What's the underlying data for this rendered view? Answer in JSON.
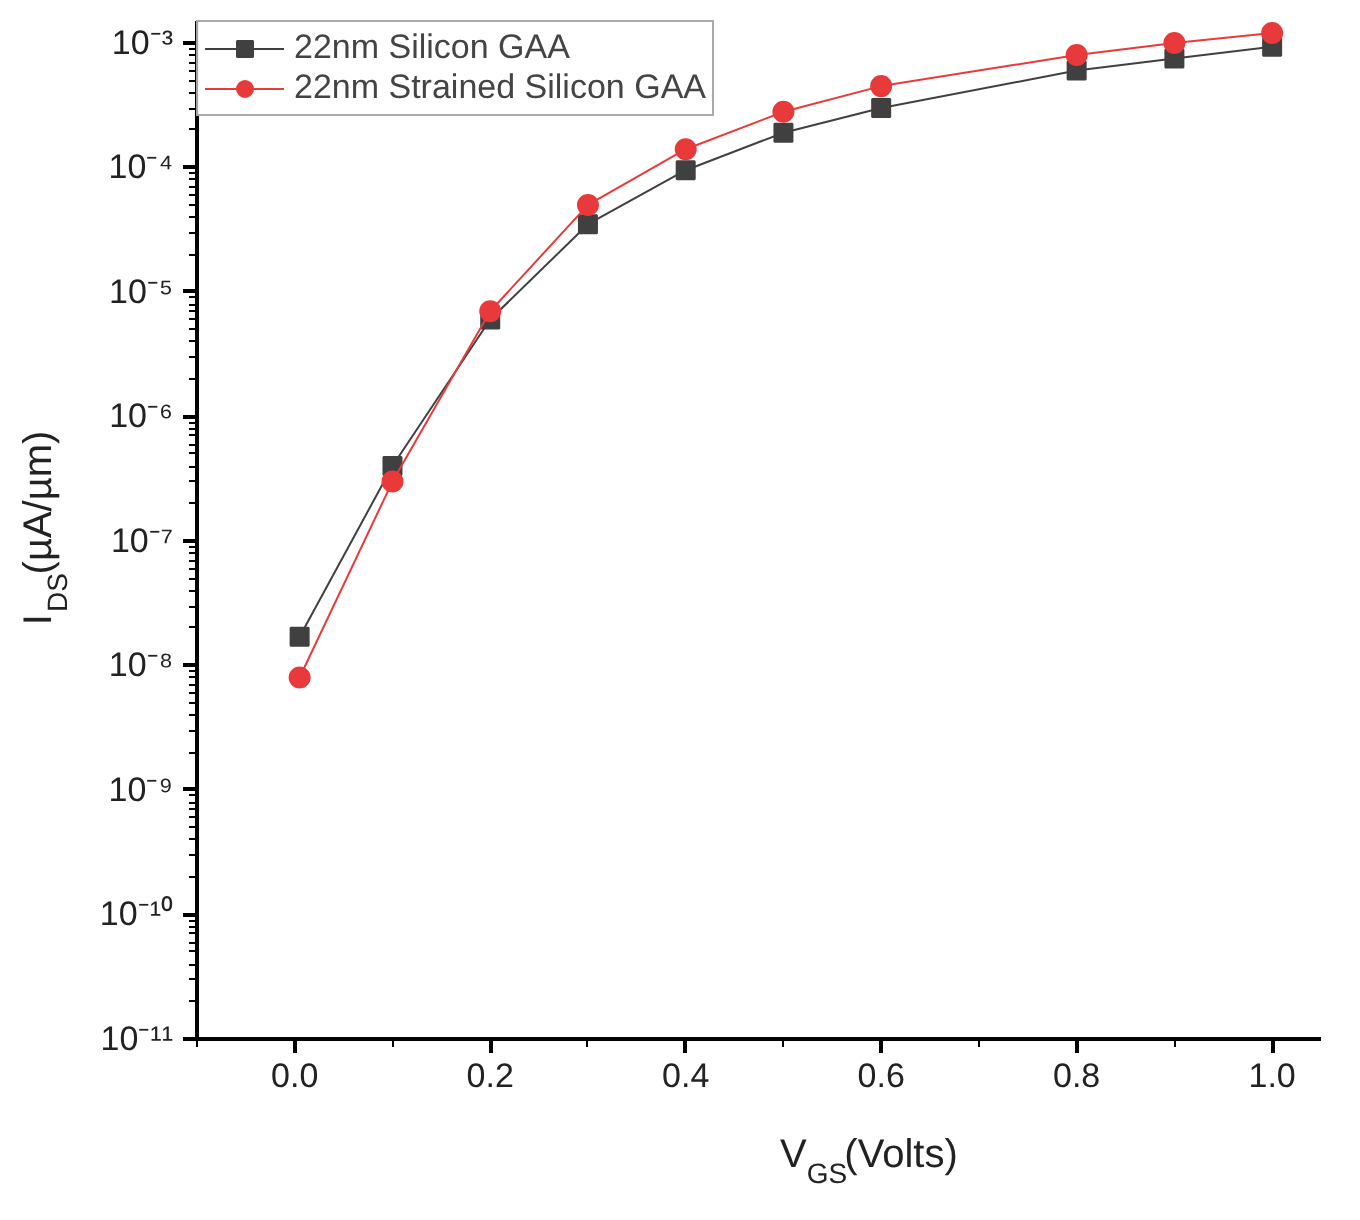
{
  "chart_data": {
    "type": "line",
    "xlabel": "V$_{GS}$(Volts)",
    "ylabel": "I$_{DS}$(µA/µm)",
    "x": [
      0.005,
      0.1,
      0.2,
      0.3,
      0.4,
      0.5,
      0.6,
      0.8,
      0.9,
      1.0
    ],
    "series": [
      {
        "name": "22nm Silicon GAA",
        "color": "#404040",
        "marker": "square",
        "values": [
          1.7e-08,
          4e-07,
          6e-06,
          3.5e-05,
          9.5e-05,
          0.00019,
          0.0003,
          0.0006,
          0.00075,
          0.00093
        ]
      },
      {
        "name": "22nm Strained Silicon GAA",
        "color": "#e83a3a",
        "marker": "circle",
        "values": [
          8e-09,
          3e-07,
          7e-06,
          5e-05,
          0.00014,
          0.00028,
          0.00045,
          0.0008,
          0.001,
          0.0012
        ]
      }
    ],
    "log": "y",
    "xlim": [
      -0.1,
      1.05
    ],
    "ylim": [
      1e-11,
      0.0015
    ],
    "xticks": [
      {
        "value": 0,
        "label": "0.0"
      },
      {
        "value": 0.2,
        "label": "0.2"
      },
      {
        "value": 0.4,
        "label": "0.4"
      },
      {
        "value": 0.6,
        "label": "0.6"
      },
      {
        "value": 0.8,
        "label": "0.8"
      },
      {
        "value": 1.0,
        "label": "1.0"
      }
    ],
    "yticks": [
      {
        "value": 1e-11,
        "label": "10⁻¹¹"
      },
      {
        "value": 1e-10,
        "label": "10⁻¹⁰"
      },
      {
        "value": 1e-09,
        "label": "10⁻⁹"
      },
      {
        "value": 1e-08,
        "label": "10⁻⁸"
      },
      {
        "value": 1e-07,
        "label": "10⁻⁷"
      },
      {
        "value": 1e-06,
        "label": "10⁻⁶"
      },
      {
        "value": 1e-05,
        "label": "10⁻⁵"
      },
      {
        "value": 0.0001,
        "label": "10⁻⁴"
      },
      {
        "value": 0.001,
        "label": "10⁻³"
      }
    ],
    "grid": false,
    "legend": "top left",
    "line_style": "solid"
  }
}
